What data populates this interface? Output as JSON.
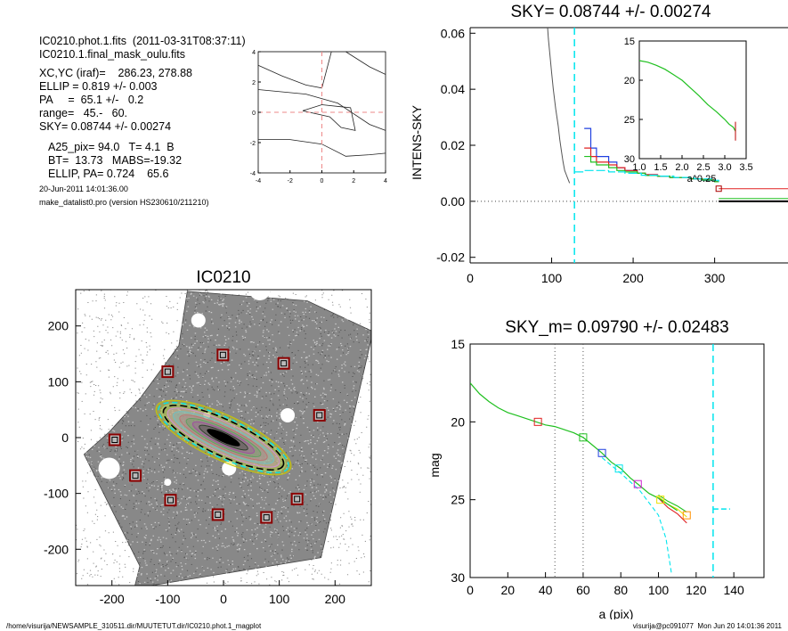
{
  "header": {
    "line1": "IC0210.phot.1.fits  (2011-03-31T08:37:11)",
    "line2": "IC0210.1.final_mask_oulu.fits",
    "line3": "XC,YC (iraf)=    286.23, 278.88",
    "line4": "ELLIP = 0.819 +/- 0.003",
    "line5": "PA     =  65.1 +/-   0.2",
    "line6": "range=   45.-   60.",
    "line7": "SKY= 0.08744 +/- 0.00274",
    "line8": "A25_pix= 94.0   T= 4.1  B",
    "line9": "BT=  13.73   MABS=-19.32",
    "line10": "ELLIP, PA= 0.724    65.6",
    "date": "20-Jun-2011 14:01:36.00",
    "program": "make_datalist0.pro (version HS230610/211210)"
  },
  "footer": {
    "path": "/home/visurija/NEWSAMPLE_310511.dir/MUUTETUT.dir/IC0210.phot.1_magplot",
    "user": "visurija@pc091077  Mon Jun 20 14:01:36 2011"
  },
  "colors": {
    "cyan": "#00e5ee",
    "red": "#e02020",
    "green": "#20c020",
    "blue": "#2040e0",
    "yellow": "#e8e000",
    "orange": "#ff9000",
    "dkred": "#8b0000",
    "grey": "#555555"
  },
  "chart_data": [
    {
      "id": "contour-inset",
      "type": "line",
      "title": "",
      "xlim": [
        -4,
        4
      ],
      "ylim": [
        -4,
        4
      ],
      "xticks": [
        "-4",
        "-2",
        "0",
        "2",
        "4"
      ],
      "yticks": [
        "-4",
        "-2",
        "0",
        "2",
        "4"
      ],
      "contours": [
        {
          "x": [
            -1.2,
            0,
            1.8,
            2.1,
            1.2,
            0.5,
            -1.2
          ],
          "y": [
            0.1,
            0.5,
            0.3,
            -1.2,
            -1.0,
            -0.3,
            0.1
          ]
        },
        {
          "x": [
            -4,
            -1,
            1,
            3,
            4
          ],
          "y": [
            1.5,
            1.2,
            0.6,
            -0.8,
            -1.2
          ]
        },
        {
          "x": [
            -4,
            -2,
            0,
            1.5,
            3,
            4
          ],
          "y": [
            -1.8,
            -1.8,
            -2.1,
            -2.9,
            -2.8,
            -2.7
          ]
        },
        {
          "x": [
            -4,
            -2.5,
            -1,
            0,
            0.6
          ],
          "y": [
            3.1,
            2.4,
            1.8,
            1.6,
            4
          ]
        },
        {
          "x": [
            1.5,
            3,
            4
          ],
          "y": [
            4,
            3.0,
            2.5
          ]
        }
      ],
      "crosshair": {
        "x": 0,
        "y": 0
      }
    },
    {
      "id": "sky-profile",
      "type": "line",
      "title": "SKY= 0.08744 +/- 0.00274",
      "xlabel": "",
      "ylabel": "INTENS-SKY",
      "xlim": [
        0,
        390
      ],
      "ylim": [
        -0.022,
        0.062
      ],
      "xticks": [
        "0",
        "100",
        "200",
        "300"
      ],
      "yticks": [
        "-0.02",
        "0.00",
        "0.02",
        "0.04",
        "0.06"
      ],
      "profile": {
        "x": [
          95,
          96,
          98,
          100,
          102,
          105,
          108,
          110,
          112,
          114,
          116,
          118,
          120,
          122
        ],
        "y": [
          0.062,
          0.058,
          0.052,
          0.046,
          0.04,
          0.033,
          0.027,
          0.022,
          0.018,
          0.014,
          0.011,
          0.0095,
          0.008,
          0.0065
        ]
      },
      "steps": [
        {
          "name": "blue",
          "x": [
            140,
            148,
            155,
            170,
            180,
            190,
            205,
            215,
            230,
            245,
            270,
            285,
            300,
            305
          ],
          "y": [
            0.026,
            0.019,
            0.016,
            0.014,
            0.012,
            0.011,
            0.01,
            0.0095,
            0.009,
            0.0085,
            0.008,
            0.0075,
            0.007,
            0.007
          ]
        },
        {
          "name": "red",
          "x": [
            140,
            148,
            155,
            170,
            180,
            190,
            205,
            215,
            230,
            245,
            270,
            285,
            300,
            305
          ],
          "y": [
            0.019,
            0.016,
            0.014,
            0.013,
            0.012,
            0.011,
            0.01,
            0.0095,
            0.009,
            0.0085,
            0.008,
            0.0078,
            0.007,
            0.007
          ]
        },
        {
          "name": "green",
          "x": [
            140,
            148,
            155,
            170,
            180,
            190,
            205,
            215,
            230,
            245,
            270,
            285,
            300,
            305
          ],
          "y": [
            0.016,
            0.014,
            0.013,
            0.012,
            0.011,
            0.0105,
            0.01,
            0.0092,
            0.009,
            0.0085,
            0.008,
            0.0076,
            0.007,
            0.007
          ]
        },
        {
          "name": "cyan",
          "x": [
            128,
            140,
            155,
            170,
            190,
            210,
            230,
            250,
            275,
            300,
            305
          ],
          "y": [
            0.0105,
            0.011,
            0.011,
            0.0105,
            0.01,
            0.0093,
            0.009,
            0.0085,
            0.008,
            0.0075,
            0.007
          ]
        }
      ],
      "right_levels": [
        {
          "name": "red",
          "y": 0.0045
        },
        {
          "name": "green",
          "y": 0.001
        },
        {
          "name": "black",
          "y": 0.0
        }
      ],
      "sky_box_x": 305,
      "sky_box_y": 0.0045,
      "vline_x": 128,
      "inset": {
        "xlabel": "a^0.25",
        "xlim": [
          1.0,
          3.5
        ],
        "ylim": [
          15,
          30
        ],
        "xticks": [
          "1.0",
          "1.5",
          "2.0",
          "2.5",
          "3.0",
          "3.5"
        ],
        "yticks": [
          "15",
          "20",
          "25",
          "30"
        ],
        "x": [
          1.0,
          1.2,
          1.4,
          1.6,
          1.8,
          2.0,
          2.2,
          2.4,
          2.6,
          2.8,
          3.0,
          3.1,
          3.2,
          3.25
        ],
        "y": [
          17.5,
          17.7,
          18.1,
          18.6,
          19.3,
          20.0,
          21.0,
          22.0,
          23.1,
          24.0,
          25.0,
          25.6,
          26.0,
          26.5
        ]
      }
    },
    {
      "id": "image-panel",
      "type": "scatter",
      "title": "IC0210",
      "xlim": [
        -265,
        265
      ],
      "ylim": [
        -265,
        265
      ],
      "xticks": [
        "-200",
        "-100",
        "0",
        "100",
        "200"
      ],
      "yticks": [
        "-200",
        "-100",
        "0",
        "100",
        "200"
      ],
      "sky_boxes": {
        "x": [
          -1,
          108,
          -100,
          172,
          -195,
          -158,
          -95,
          -10,
          77,
          132
        ],
        "y": [
          148,
          133,
          118,
          40,
          -4,
          -68,
          -112,
          -138,
          -143,
          -110
        ]
      }
    },
    {
      "id": "mag-profile",
      "type": "line",
      "title": "SKY_m=  0.09790 +/- 0.02483",
      "xlabel": "a (pix)",
      "ylabel": "mag",
      "xlim": [
        0,
        156
      ],
      "ylim": [
        15,
        30
      ],
      "xticks": [
        "0",
        "20",
        "40",
        "60",
        "80",
        "100",
        "120",
        "140"
      ],
      "yticks": [
        "15",
        "20",
        "25",
        "30"
      ],
      "main": {
        "x": [
          0,
          5,
          10,
          15,
          20,
          25,
          30,
          35,
          40,
          45,
          50,
          55,
          60,
          65,
          70,
          75,
          80,
          85,
          90,
          95,
          100,
          105,
          110
        ],
        "y": [
          17.5,
          18.2,
          18.7,
          19.1,
          19.4,
          19.6,
          19.8,
          20.0,
          20.2,
          20.3,
          20.5,
          20.7,
          21.0,
          21.5,
          22.0,
          22.6,
          23.0,
          23.6,
          24.1,
          24.6,
          24.9,
          25.3,
          25.7
        ]
      },
      "tails": [
        {
          "name": "red",
          "x": [
            100,
            105,
            110,
            115
          ],
          "y": [
            24.9,
            25.5,
            25.9,
            26.5
          ]
        },
        {
          "name": "green",
          "x": [
            100,
            105,
            110,
            115
          ],
          "y": [
            24.7,
            25.1,
            25.4,
            25.8
          ]
        },
        {
          "name": "yellow",
          "x": [
            100,
            105,
            110,
            115
          ],
          "y": [
            24.8,
            25.3,
            25.6,
            26.1
          ]
        },
        {
          "name": "cyan",
          "x": [
            70,
            80,
            90,
            100,
            104,
            107
          ],
          "y": [
            22.3,
            23.3,
            24.4,
            26.0,
            27.5,
            29.8
          ]
        }
      ],
      "markers": [
        {
          "color": "red",
          "x": 36,
          "y": 20.0
        },
        {
          "color": "green",
          "x": 60,
          "y": 21.0
        },
        {
          "color": "blue",
          "x": 70,
          "y": 22.0
        },
        {
          "color": "cyan",
          "x": 79,
          "y": 23.0
        },
        {
          "color": "magenta",
          "x": 89,
          "y": 24.0
        },
        {
          "color": "yellow",
          "x": 101,
          "y": 25.0
        },
        {
          "color": "orange",
          "x": 115,
          "y": 26.0
        }
      ],
      "dotted_x": [
        45,
        60
      ],
      "vline_x": 129,
      "sky_level": {
        "x": [
          129,
          138
        ],
        "y": 25.6
      }
    }
  ]
}
